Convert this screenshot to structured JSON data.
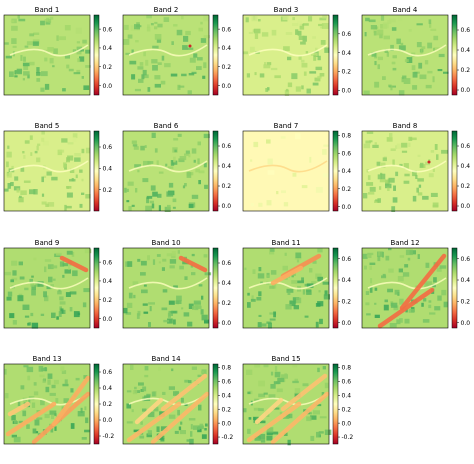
{
  "chart_data": [
    {
      "type": "heatmap",
      "title": "Band 1",
      "colormap": "RdYlGn",
      "colorbar_ticks": [
        "0.0",
        "0.2",
        "0.4",
        "0.6"
      ],
      "colorbar_range": [
        -0.1,
        0.75
      ],
      "pattern": "base"
    },
    {
      "type": "heatmap",
      "title": "Band 2",
      "colormap": "RdYlGn",
      "colorbar_ticks": [
        "0.0",
        "0.2",
        "0.4",
        "0.6"
      ],
      "colorbar_range": [
        -0.1,
        0.75
      ],
      "pattern": "base"
    },
    {
      "type": "heatmap",
      "title": "Band 3",
      "colormap": "RdYlGn",
      "colorbar_ticks": [
        "0.0",
        "0.2",
        "0.4",
        "0.6"
      ],
      "colorbar_range": [
        -0.05,
        0.8
      ],
      "pattern": "pale"
    },
    {
      "type": "heatmap",
      "title": "Band 4",
      "colormap": "RdYlGn",
      "colorbar_ticks": [
        "0.0",
        "0.2",
        "0.4",
        "0.6"
      ],
      "colorbar_range": [
        -0.05,
        0.75
      ],
      "pattern": "base"
    },
    {
      "type": "heatmap",
      "title": "Band 5",
      "colormap": "RdYlGn",
      "colorbar_ticks": [
        "0.2",
        "0.4",
        "0.6"
      ],
      "colorbar_range": [
        0.0,
        0.75
      ],
      "pattern": "pale"
    },
    {
      "type": "heatmap",
      "title": "Band 6",
      "colormap": "RdYlGn",
      "colorbar_ticks": [
        "0.0",
        "0.2",
        "0.4",
        "0.6"
      ],
      "colorbar_range": [
        -0.05,
        0.75
      ],
      "pattern": "base"
    },
    {
      "type": "heatmap",
      "title": "Band 7",
      "colormap": "RdYlGn",
      "colorbar_ticks": [
        "0.0",
        "0.2",
        "0.4",
        "0.6",
        "0.8"
      ],
      "colorbar_range": [
        -0.05,
        0.85
      ],
      "pattern": "orange"
    },
    {
      "type": "heatmap",
      "title": "Band 8",
      "colormap": "RdYlGn",
      "colorbar_ticks": [
        "0.0",
        "0.2",
        "0.4",
        "0.6"
      ],
      "colorbar_range": [
        -0.05,
        0.75
      ],
      "pattern": "pale"
    },
    {
      "type": "heatmap",
      "title": "Band 9",
      "colormap": "RdYlGn",
      "colorbar_ticks": [
        "0.0",
        "0.2",
        "0.4",
        "0.6"
      ],
      "colorbar_range": [
        -0.1,
        0.75
      ],
      "pattern": "stripe1"
    },
    {
      "type": "heatmap",
      "title": "Band 10",
      "colormap": "RdYlGn",
      "colorbar_ticks": [
        "0.0",
        "0.2",
        "0.4",
        "0.6"
      ],
      "colorbar_range": [
        -0.05,
        0.75
      ],
      "pattern": "stripe1"
    },
    {
      "type": "heatmap",
      "title": "Band 11",
      "colormap": "RdYlGn",
      "colorbar_ticks": [
        "0.0",
        "0.2",
        "0.4",
        "0.6"
      ],
      "colorbar_range": [
        -0.05,
        0.7
      ],
      "pattern": "stripe2"
    },
    {
      "type": "heatmap",
      "title": "Band 12",
      "colormap": "RdYlGn",
      "colorbar_ticks": [
        "0.0",
        "0.2",
        "0.4",
        "0.6"
      ],
      "colorbar_range": [
        -0.05,
        0.7
      ],
      "pattern": "stripe3"
    },
    {
      "type": "heatmap",
      "title": "Band 13",
      "colormap": "RdYlGn",
      "colorbar_ticks": [
        "-0.2",
        "0.0",
        "0.2",
        "0.4",
        "0.6"
      ],
      "colorbar_range": [
        -0.3,
        0.7
      ],
      "pattern": "stripe4"
    },
    {
      "type": "heatmap",
      "title": "Band 14",
      "colormap": "RdYlGn",
      "colorbar_ticks": [
        "-0.2",
        "0.0",
        "0.2",
        "0.4",
        "0.6",
        "0.8"
      ],
      "colorbar_range": [
        -0.3,
        0.85
      ],
      "pattern": "stripe5"
    },
    {
      "type": "heatmap",
      "title": "Band 15",
      "colormap": "RdYlGn",
      "colorbar_ticks": [
        "-0.2",
        "0.0",
        "0.2",
        "0.4",
        "0.6",
        "0.8"
      ],
      "colorbar_range": [
        -0.3,
        0.85
      ],
      "pattern": "stripe5"
    }
  ]
}
